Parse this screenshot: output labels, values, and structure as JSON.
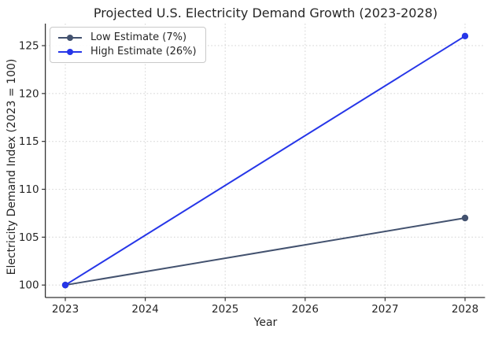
{
  "chart_data": {
    "type": "line",
    "title": "Projected U.S. Electricity Demand Growth (2023-2028)",
    "xlabel": "Year",
    "ylabel": "Electricity Demand Index (2023 = 100)",
    "x": [
      2023,
      2028
    ],
    "series": [
      {
        "name": "Low Estimate (7%)",
        "color": "#43526f",
        "values": [
          100,
          107
        ]
      },
      {
        "name": "High Estimate (26%)",
        "color": "#2636e8",
        "values": [
          100,
          126
        ]
      }
    ],
    "xticks": [
      "2023",
      "2024",
      "2025",
      "2026",
      "2027",
      "2028"
    ],
    "xtick_values": [
      2023,
      2024,
      2025,
      2026,
      2027,
      2028
    ],
    "yticks": [
      "100",
      "105",
      "110",
      "115",
      "120",
      "125"
    ],
    "ytick_values": [
      100,
      105,
      110,
      115,
      120,
      125
    ],
    "xlim": [
      2022.75,
      2028.25
    ],
    "ylim": [
      98.7,
      127.3
    ],
    "grid": {
      "style": "dotted",
      "color": "#d8d8d8"
    },
    "axis_color": "#333333",
    "text_color": "#262626",
    "legend_position": "upper-left",
    "line_width": 2,
    "marker": "circle",
    "marker_radius": 4.2
  }
}
